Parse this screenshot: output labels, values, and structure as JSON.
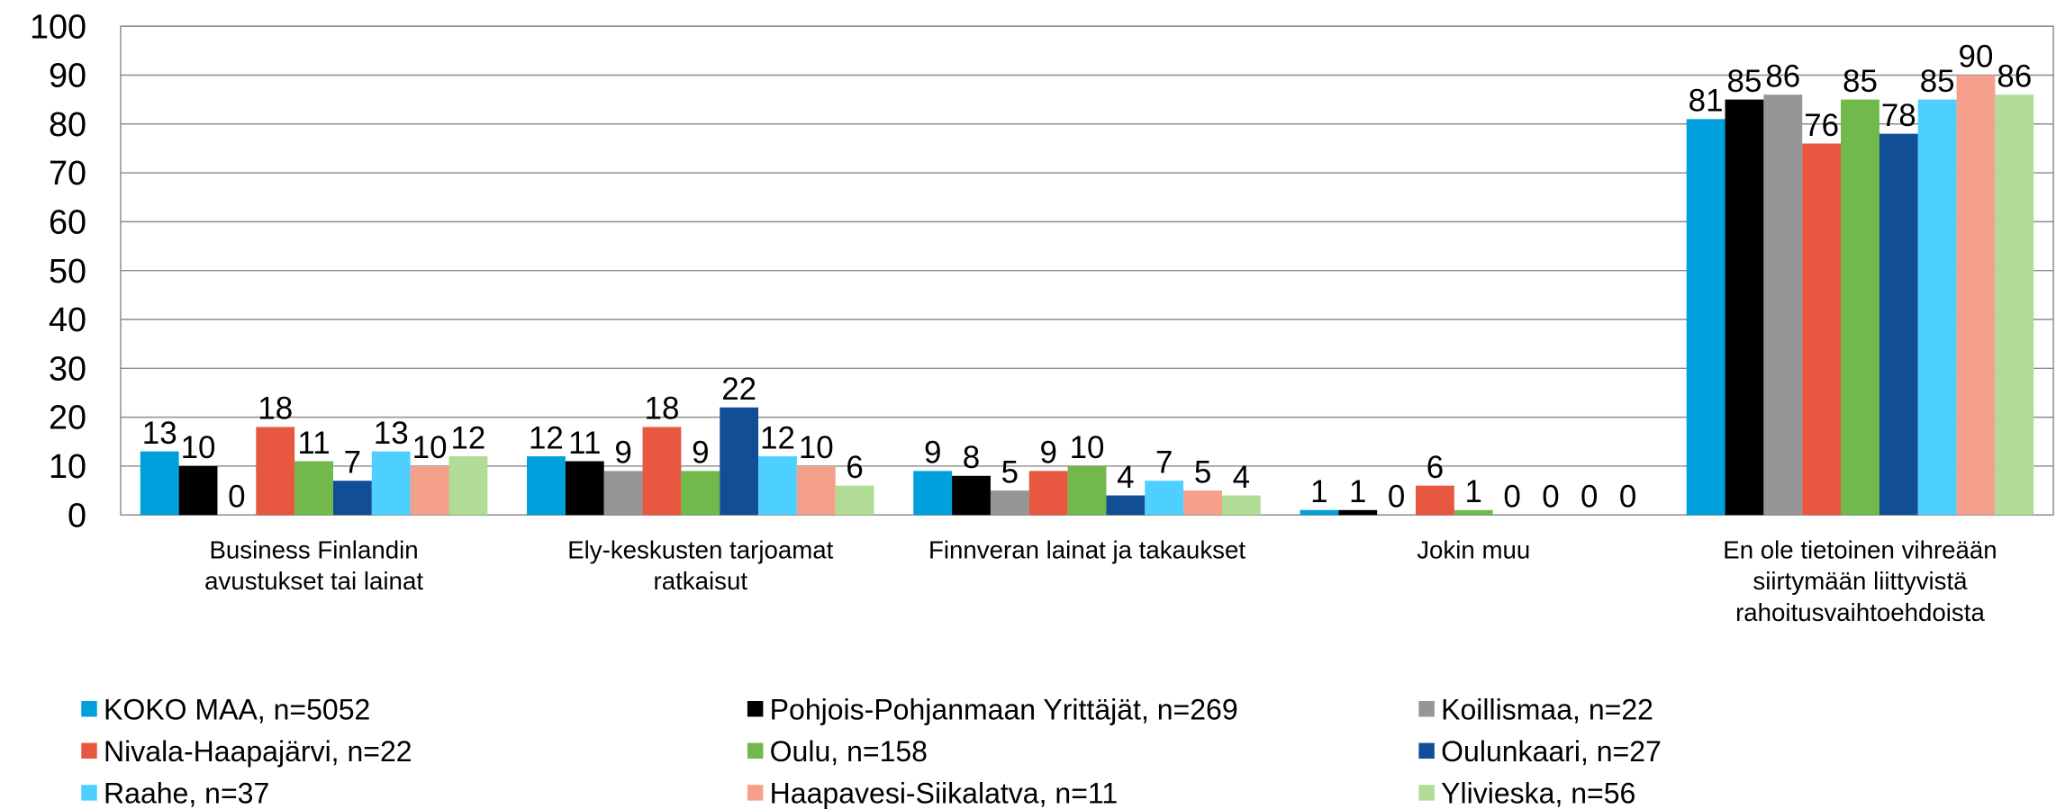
{
  "chart_data": {
    "type": "bar",
    "categories": [
      [
        "Business Finlandin",
        "avustukset tai lainat"
      ],
      [
        "Ely-keskusten tarjoamat",
        "ratkaisut"
      ],
      [
        "Finnveran lainat ja takaukset"
      ],
      [
        "Jokin muu"
      ],
      [
        "En ole tietoinen vihreään",
        "siirtymään liittyvistä",
        "rahoitusvaihtoehdoista"
      ]
    ],
    "series": [
      {
        "name": "KOKO MAA, n=5052",
        "color": "#00a0dc",
        "values": [
          13,
          12,
          9,
          1,
          81
        ]
      },
      {
        "name": "Pohjois-Pohjanmaan Yrittäjät, n=269",
        "color": "#000000",
        "values": [
          10,
          11,
          8,
          1,
          85
        ]
      },
      {
        "name": "Koillismaa, n=22",
        "color": "#969696",
        "values": [
          0,
          9,
          5,
          0,
          86
        ]
      },
      {
        "name": "Nivala-Haapajärvi, n=22",
        "color": "#e8573f",
        "values": [
          18,
          18,
          9,
          6,
          76
        ]
      },
      {
        "name": "Oulu, n=158",
        "color": "#70b94a",
        "values": [
          11,
          9,
          10,
          1,
          85
        ]
      },
      {
        "name": "Oulunkaari, n=27",
        "color": "#124e96",
        "values": [
          7,
          22,
          4,
          0,
          78
        ]
      },
      {
        "name": "Raahe, n=37",
        "color": "#4dd0ff",
        "values": [
          13,
          12,
          7,
          0,
          85
        ]
      },
      {
        "name": "Haapavesi-Siikalatva, n=11",
        "color": "#f4a08a",
        "values": [
          10,
          10,
          5,
          0,
          90
        ]
      },
      {
        "name": "Ylivieska, n=56",
        "color": "#b0dc96",
        "values": [
          12,
          6,
          4,
          0,
          86
        ]
      }
    ],
    "ylim": [
      0,
      100
    ],
    "yticks": [
      0,
      10,
      20,
      30,
      40,
      50,
      60,
      70,
      80,
      90,
      100
    ],
    "grid": true
  }
}
